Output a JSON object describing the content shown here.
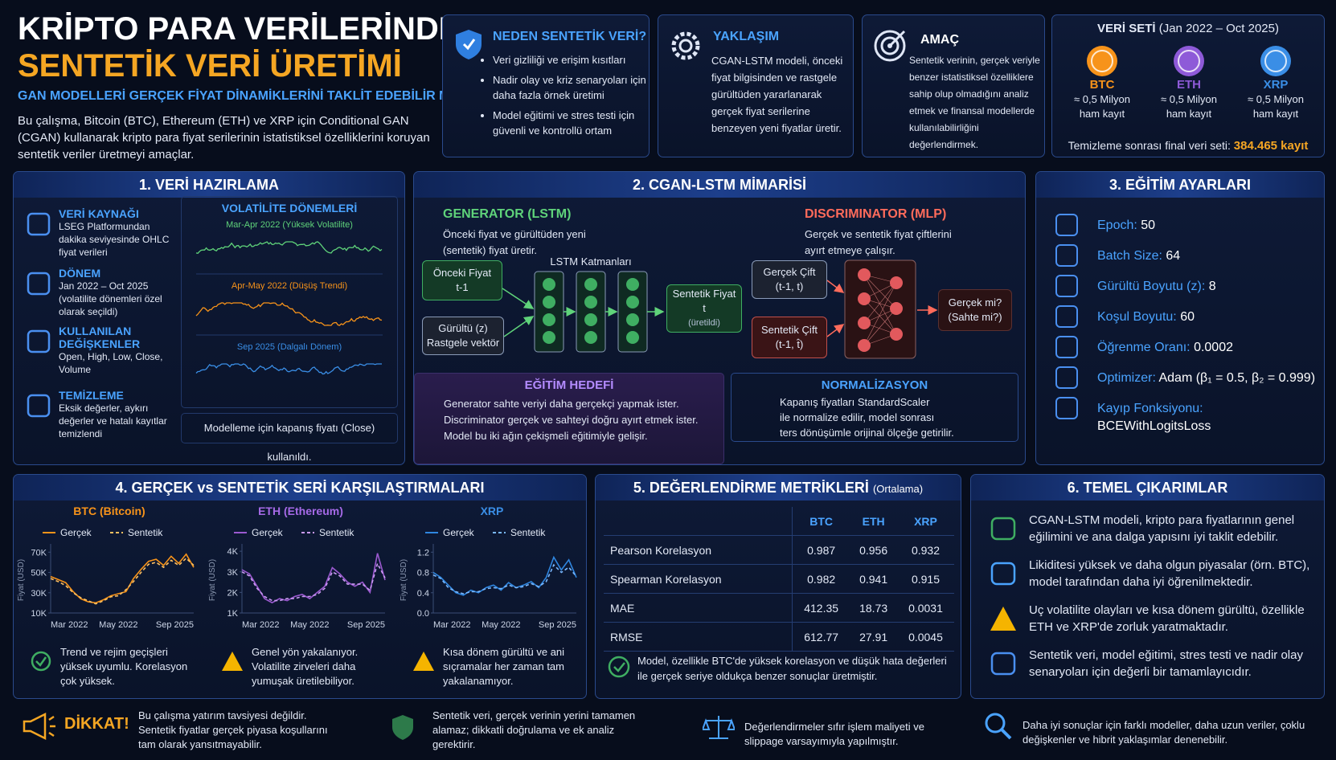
{
  "header": {
    "title_line1": "KRİPTO PARA VERİLERİNDE",
    "title_line2": "SENTETİK VERİ ÜRETİMİ",
    "subtitle": "GAN MODELLERİ GERÇEK FİYAT DİNAMİKLERİNİ TAKLİT EDEBİLİR Mİ?",
    "description": "Bu çalışma, Bitcoin (BTC), Ethereum (ETH) ve XRP için Conditional GAN (CGAN) kullanarak kripto para fiyat serilerinin istatistiksel özelliklerini koruyan sentetik veriler üretmeyi amaçlar."
  },
  "cards": [
    {
      "title": "NEDEN SENTETİK VERİ?",
      "items": [
        "Veri gizliliği ve erişim kısıtları",
        "Nadir olay ve kriz senaryoları için daha fazla örnek üretimi",
        "Model eğitimi ve stres testi için güvenli ve kontrollü ortam"
      ]
    },
    {
      "title": "YAKLAŞIM",
      "text": "CGAN-LSTM modeli, önceki fiyat bilgisinden ve rastgele gürültüden yararlanarak gerçek fiyat serilerine benzeyen yeni fiyatlar üretir."
    },
    {
      "title": "AMAÇ",
      "text": "Sentetik verinin, gerçek veriyle benzer istatistiksel özelliklere sahip olup olmadığını analiz etmek ve finansal modellerde kullanılabilirliğini değerlendirmek."
    }
  ],
  "dataset": {
    "title": "VERİ SETİ",
    "period": "(Jan 2022 – Oct 2025)",
    "coins": [
      {
        "name": "BTC",
        "color": "#f7931a",
        "amount": "≈ 0,5 Milyon",
        "unit": "ham kayıt"
      },
      {
        "name": "ETH",
        "color": "#8e5ad8",
        "amount": "≈ 0,5 Milyon",
        "unit": "ham kayıt"
      },
      {
        "name": "XRP",
        "color": "#3a8ee6",
        "amount": "≈ 0,5 Milyon",
        "unit": "ham kayıt"
      }
    ],
    "final_label": "Temizleme sonrası final veri seti:",
    "final_value": "384.465 kayıt"
  },
  "section1": {
    "title": "1. VERİ HAZIRLAMA",
    "items": [
      {
        "title": "VERİ KAYNAĞI",
        "text": "LSEG Platformundan dakika seviyesinde OHLC fiyat verileri"
      },
      {
        "title": "DÖNEM",
        "text": "Jan 2022 – Oct 2025 (volatilite dönemleri özel olarak seçildi)"
      },
      {
        "title": "KULLANILAN DEĞİŞKENLER",
        "text": "Open, High, Low, Close, Volume"
      },
      {
        "title": "TEMİZLEME",
        "text": "Eksik değerler, aykırı değerler ve hatalı kayıtlar temizlendi"
      }
    ],
    "volatility": {
      "title": "VOLATİLİTE DÖNEMLERİ",
      "periods": [
        {
          "label": "Mar-Apr 2022 (Yüksek Volatilite)",
          "color": "#5fd37a"
        },
        {
          "label": "Apr-May 2022 (Düşüş Trendi)",
          "color": "#f7931a"
        },
        {
          "label": "Sep 2025 (Dalgalı Dönem)",
          "color": "#3a8ee6"
        }
      ]
    },
    "note": "Modelleme için kapanış fiyatı (Close) kullanıldı."
  },
  "section2": {
    "title": "2. CGAN-LSTM MİMARİSİ",
    "generator": {
      "title": "GENERATOR (LSTM)",
      "text": "Önceki fiyat ve gürültüden yeni (sentetik) fiyat üretir."
    },
    "discriminator": {
      "title": "DISCRIMINATOR (MLP)",
      "text": "Gerçek ve sentetik fiyat çiftlerini ayırt etmeye çalışır."
    },
    "diagram": {
      "prev_price": [
        "Önceki Fiyat",
        "t-1"
      ],
      "noise": [
        "Gürültü (z)",
        "Rastgele vektör"
      ],
      "lstm_label": "LSTM Katmanları",
      "synthetic_price": [
        "Sentetik Fiyat",
        "t",
        "(üretildi)"
      ],
      "real_pair": [
        "Gerçek Çift",
        "(t-1, t)"
      ],
      "synthetic_pair": [
        "Sentetik Çift",
        "(t-1, t̂)"
      ],
      "output": [
        "Gerçek mi?",
        "(Sahte mi?)"
      ]
    },
    "training_goal": {
      "title": "EĞİTİM HEDEFİ",
      "lines": [
        "Generator sahte veriyi daha gerçekçi yapmak ister.",
        "Discriminator gerçek ve sahteyi doğru ayırt etmek ister.",
        "Model bu iki ağın çekişmeli eğitimiyle gelişir."
      ]
    },
    "normalization": {
      "title": "NORMALİZASYON",
      "lines": [
        "Kapanış fiyatları StandardScaler",
        "ile normalize edilir, model sonrası",
        "ters dönüşümle orijinal ölçeğe getirilir."
      ]
    }
  },
  "section3": {
    "title": "3. EĞİTİM AYARLARI",
    "items": [
      {
        "label": "Epoch:",
        "value": "50"
      },
      {
        "label": "Batch Size:",
        "value": "64"
      },
      {
        "label": "Gürültü Boyutu (z):",
        "value": "8"
      },
      {
        "label": "Koşul Boyutu:",
        "value": "60"
      },
      {
        "label": "Öğrenme Oranı:",
        "value": "0.0002"
      },
      {
        "label": "Optimizer:",
        "value": "Adam (β₁ = 0.5, β₂ = 0.999)"
      },
      {
        "label": "Kayıp Fonksiyonu:",
        "value": "BCEWithLogitsLoss"
      }
    ]
  },
  "section4": {
    "title": "4. GERÇEK vs SENTETİK SERİ KARŞILAŞTIRMALARI",
    "notes": [
      "Trend ve rejim geçişleri yüksek uyumlu. Korelasyon çok yüksek.",
      "Genel yön yakalanıyor. Volatilite zirveleri daha yumuşak üretilebiliyor.",
      "Kısa dönem gürültü ve ani sıçramalar her zaman tam yakalanamıyor."
    ]
  },
  "chart_data": [
    {
      "type": "line",
      "title": "BTC (Bitcoin)",
      "title_color": "#f7931a",
      "y_label": "Fiyat (USD)",
      "categories": [
        "Mar 2022",
        null,
        null,
        null,
        null,
        null,
        null,
        null,
        null,
        "May 2022",
        null,
        null,
        null,
        null,
        null,
        null,
        null,
        null,
        null,
        "Sep 2025"
      ],
      "series": [
        {
          "name": "Gerçek",
          "color": "#f7931a",
          "dashed": false,
          "values": [
            46000,
            43000,
            40000,
            31000,
            24000,
            21000,
            20000,
            23000,
            27000,
            29000,
            31000,
            44000,
            53000,
            61000,
            63000,
            57000,
            66000,
            59000,
            68000,
            55000
          ]
        },
        {
          "name": "Sentetik",
          "color": "#ffc061",
          "dashed": true,
          "values": [
            44000,
            41000,
            37000,
            30000,
            25000,
            22000,
            19000,
            22000,
            26000,
            27000,
            33000,
            41000,
            50000,
            58000,
            60000,
            55000,
            62000,
            57000,
            64000,
            57000
          ]
        }
      ],
      "ylim": [
        10000,
        75000
      ],
      "yticks": [
        {
          "value": 10000,
          "label": "10K"
        },
        {
          "value": 30000,
          "label": "30K"
        },
        {
          "value": 50000,
          "label": "50K"
        },
        {
          "value": 70000,
          "label": "70K"
        }
      ]
    },
    {
      "type": "line",
      "title": "ETH (Ethereum)",
      "title_color": "#a66ae8",
      "y_label": "Fiyat (USD)",
      "categories": [
        "Mar 2022",
        null,
        null,
        null,
        null,
        null,
        null,
        null,
        null,
        "May 2022",
        null,
        null,
        null,
        null,
        null,
        null,
        null,
        null,
        null,
        "Sep 2025"
      ],
      "series": [
        {
          "name": "Gerçek",
          "color": "#9b59d0",
          "dashed": false,
          "values": [
            3100,
            2900,
            2300,
            1700,
            1500,
            1700,
            1600,
            1800,
            1900,
            1700,
            2000,
            2300,
            3200,
            2900,
            2500,
            2300,
            2500,
            2000,
            3900,
            2600
          ]
        },
        {
          "name": "Sentetik",
          "color": "#c99af2",
          "dashed": true,
          "values": [
            3000,
            2800,
            2200,
            1800,
            1600,
            1600,
            1700,
            1700,
            1800,
            1800,
            1900,
            2200,
            3000,
            2800,
            2400,
            2400,
            2400,
            2100,
            3400,
            2700
          ]
        }
      ],
      "ylim": [
        1000,
        4200
      ],
      "yticks": [
        {
          "value": 1000,
          "label": "1K"
        },
        {
          "value": 2000,
          "label": "2K"
        },
        {
          "value": 3000,
          "label": "3K"
        },
        {
          "value": 4000,
          "label": "4K"
        }
      ]
    },
    {
      "type": "line",
      "title": "XRP",
      "title_color": "#3a8ee6",
      "y_label": "Fiyat (USD)",
      "categories": [
        "Mar 2022",
        null,
        null,
        null,
        null,
        null,
        null,
        null,
        null,
        "May 2022",
        null,
        null,
        null,
        null,
        null,
        null,
        null,
        null,
        null,
        "Sep 2025"
      ],
      "series": [
        {
          "name": "Gerçek",
          "color": "#2f86e0",
          "dashed": false,
          "values": [
            0.8,
            0.7,
            0.55,
            0.4,
            0.35,
            0.45,
            0.4,
            0.5,
            0.55,
            0.45,
            0.6,
            0.5,
            0.55,
            0.62,
            0.5,
            0.7,
            1.1,
            0.85,
            1.05,
            0.7
          ]
        },
        {
          "name": "Sentetik",
          "color": "#7ab8ff",
          "dashed": true,
          "values": [
            0.75,
            0.68,
            0.5,
            0.42,
            0.38,
            0.42,
            0.42,
            0.48,
            0.5,
            0.48,
            0.55,
            0.5,
            0.52,
            0.58,
            0.52,
            0.62,
            0.95,
            0.8,
            0.9,
            0.72
          ]
        }
      ],
      "ylim": [
        0,
        1.3
      ],
      "yticks": [
        {
          "value": 0,
          "label": "0.0"
        },
        0.4,
        0.8,
        1.2
      ]
    }
  ],
  "section5": {
    "title": "5. DEĞERLENDİRME METRİKLERİ",
    "subtitle": "(Ortalama)",
    "header": [
      "BTC",
      "ETH",
      "XRP"
    ],
    "rows": [
      [
        "Pearson Korelasyon",
        "0.987",
        "0.956",
        "0.932"
      ],
      [
        "Spearman Korelasyon",
        "0.982",
        "0.941",
        "0.915"
      ],
      [
        "MAE",
        "412.35",
        "18.73",
        "0.0031"
      ],
      [
        "RMSE",
        "612.77",
        "27.91",
        "0.0045"
      ]
    ],
    "note": "Model, özellikle BTC'de yüksek korelasyon ve düşük hata değerleri ile gerçek seriye oldukça benzer sonuçlar üretmiştir."
  },
  "section6": {
    "title": "6. TEMEL ÇIKARIMLAR",
    "items": [
      "CGAN-LSTM modeli, kripto para fiyatlarının genel eğilimini ve ana dalga yapısını iyi taklit edebilir.",
      "Likiditesi yüksek ve daha olgun piyasalar (örn. BTC), model tarafından daha iyi öğrenilmektedir.",
      "Uç volatilite olayları ve kısa dönem gürültü, özellikle ETH ve XRP'de zorluk yaratmaktadır.",
      "Sentetik veri, model eğitimi, stres testi ve nadir olay senaryoları için değerli bir tamamlayıcıdır."
    ]
  },
  "footer": {
    "warning_title": "DİKKAT!",
    "items": [
      "Bu çalışma yatırım tavsiyesi değildir. Sentetik fiyatlar gerçek piyasa koşullarını tam olarak yansıtmayabilir.",
      "Sentetik veri, gerçek verinin yerini tamamen alamaz; dikkatli doğrulama ve ek analiz gerektirir.",
      "Değerlendirmeler sıfır işlem maliyeti ve slippage varsayımıyla yapılmıştır.",
      "Daha iyi sonuçlar için farklı modeller, daha uzun veriler, çoklu değişkenler ve hibrit yaklaşımlar denenebilir."
    ]
  }
}
